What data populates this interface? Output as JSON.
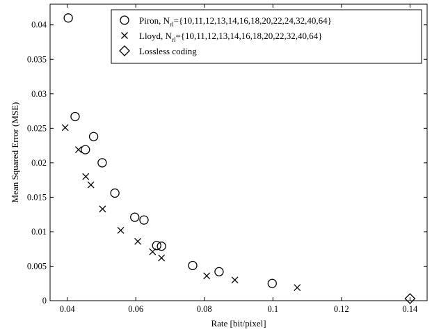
{
  "chart_data": {
    "type": "scatter",
    "xlabel": "Rate [bit/pixel]",
    "ylabel": "Mean Squared Error (MSE)",
    "xlim": [
      0.035,
      0.145
    ],
    "ylim": [
      0,
      0.043
    ],
    "x_ticks": [
      "0.04",
      "0.06",
      "0.08",
      "0.1",
      "0.12",
      "0.14"
    ],
    "y_ticks": [
      "0",
      "0.005",
      "0.01",
      "0.015",
      "0.02",
      "0.025",
      "0.03",
      "0.035",
      "0.04"
    ],
    "legend_position": "top-right",
    "series": [
      {
        "name_main": "Piron, N",
        "name_sub": "rl",
        "name_tail": "={10,11,12,13,14,16,18,20,22,24,32,40,64}",
        "marker": "circle",
        "points": [
          [
            0.0403,
            0.041
          ],
          [
            0.0423,
            0.0267
          ],
          [
            0.0453,
            0.0219
          ],
          [
            0.0477,
            0.0238
          ],
          [
            0.0502,
            0.02
          ],
          [
            0.0539,
            0.0156
          ],
          [
            0.0597,
            0.0121
          ],
          [
            0.0624,
            0.0117
          ],
          [
            0.0661,
            0.008
          ],
          [
            0.0675,
            0.0079
          ],
          [
            0.0766,
            0.0051
          ],
          [
            0.0843,
            0.0042
          ],
          [
            0.0998,
            0.0025
          ]
        ]
      },
      {
        "name_main": "Lloyd, N",
        "name_sub": "rl",
        "name_tail": "={10,11,12,13,14,16,18,20,22,32,40,64}",
        "marker": "x",
        "points": [
          [
            0.0394,
            0.0251
          ],
          [
            0.0433,
            0.0219
          ],
          [
            0.0454,
            0.018
          ],
          [
            0.0469,
            0.0168
          ],
          [
            0.0503,
            0.0133
          ],
          [
            0.0556,
            0.0102
          ],
          [
            0.0606,
            0.0086
          ],
          [
            0.0649,
            0.0071
          ],
          [
            0.0675,
            0.0062
          ],
          [
            0.0807,
            0.0036
          ],
          [
            0.0889,
            0.003
          ],
          [
            0.1071,
            0.0019
          ]
        ]
      },
      {
        "name_main": "Lossless coding",
        "name_sub": "",
        "name_tail": "",
        "marker": "diamond",
        "points": [
          [
            0.14,
            0.0003
          ]
        ]
      }
    ]
  }
}
